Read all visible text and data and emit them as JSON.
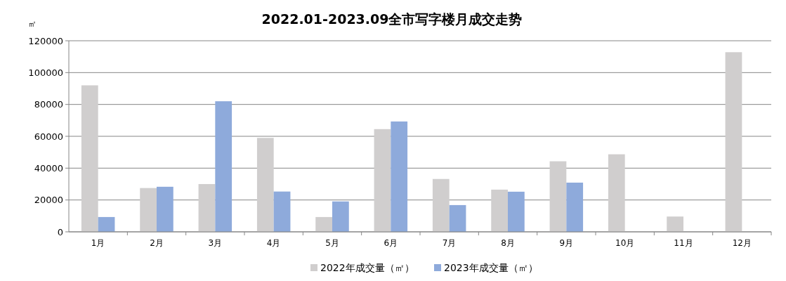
{
  "chart_data": {
    "type": "bar",
    "title": "2022.01-2023.09全市写字楼月成交走势",
    "ylabel": "㎡",
    "categories": [
      "1月",
      "2月",
      "3月",
      "4月",
      "5月",
      "6月",
      "7月",
      "8月",
      "9月",
      "10月",
      "11月",
      "12月"
    ],
    "series": [
      {
        "name": "2022年成交量（㎡）",
        "color": "#d0cece",
        "values": [
          92000,
          27500,
          30000,
          59000,
          9300,
          64500,
          33200,
          26500,
          44300,
          48700,
          9600,
          112800
        ]
      },
      {
        "name": "2023年成交量（㎡）",
        "color": "#8eaadb",
        "values": [
          9300,
          28300,
          82000,
          25300,
          19100,
          69300,
          16800,
          25200,
          30900,
          null,
          null,
          null
        ]
      }
    ],
    "ylim": [
      0,
      120000
    ],
    "yticks": [
      0,
      20000,
      40000,
      60000,
      80000,
      100000,
      120000
    ],
    "grid": "y",
    "legend": "bottom"
  }
}
